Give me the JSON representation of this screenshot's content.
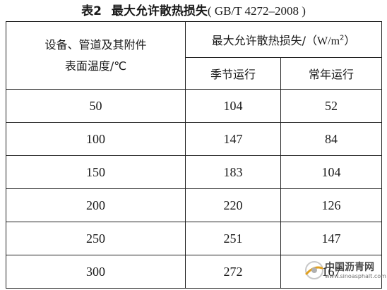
{
  "title": {
    "number": "表2",
    "name": "最大允许散热损失",
    "standard": "( GB/T 4272–2008 )"
  },
  "table": {
    "header_left_line1": "设备、管道及其附件",
    "header_left_line2": "表面温度/℃",
    "header_right_text": "最大允许散热损失/（",
    "header_right_unit": "W/m",
    "header_right_sup": "2",
    "header_right_close": "）",
    "header_seasonal": "季节运行",
    "header_yearround": "常年运行",
    "rows": [
      {
        "temp": "50",
        "seasonal": "104",
        "yearround": "52"
      },
      {
        "temp": "100",
        "seasonal": "147",
        "yearround": "84"
      },
      {
        "temp": "150",
        "seasonal": "183",
        "yearround": "104"
      },
      {
        "temp": "200",
        "seasonal": "220",
        "yearround": "126"
      },
      {
        "temp": "250",
        "seasonal": "251",
        "yearround": "147"
      },
      {
        "temp": "300",
        "seasonal": "272",
        "yearround": "167"
      }
    ]
  },
  "watermark": {
    "name": "中国沥青网",
    "url": "www.sinoasphalt.com"
  },
  "colors": {
    "text": "#1a1a1a",
    "border": "#222222",
    "background": "#ffffff"
  }
}
